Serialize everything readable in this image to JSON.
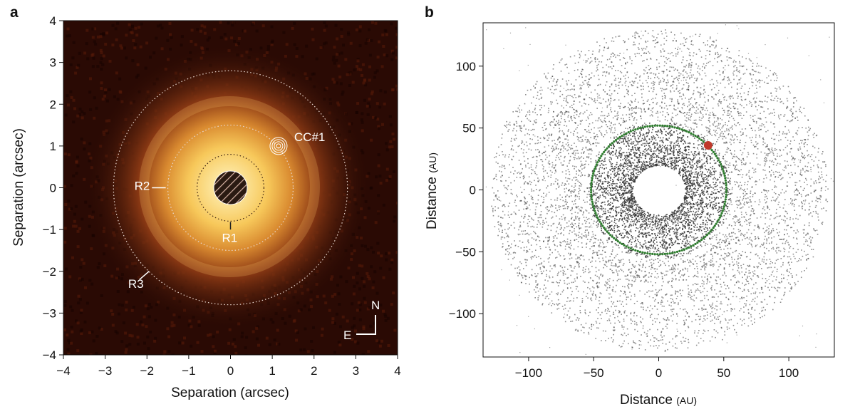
{
  "panel_a": {
    "letter": "a",
    "annotations": {
      "cc1": "CC#1",
      "r1": "R1",
      "r2": "R2",
      "r3": "R3",
      "north": "N",
      "east": "E"
    }
  },
  "panel_b": {
    "letter": "b"
  },
  "colors": {
    "image_bg": "#2a0a04",
    "glow_core": "#fff2b0",
    "glow_mid": "#e7a03a",
    "glow_outer": "#8a3a12",
    "particles": "#555555",
    "resonant_ring": "#2f7d2f",
    "planet": "#c0392b"
  },
  "chart_data": [
    {
      "type": "heatmap",
      "title": "",
      "xlabel": "Separation (arcsec)",
      "ylabel": "Separation (arcsec)",
      "xlim": [
        -4,
        4
      ],
      "ylim": [
        -4,
        4
      ],
      "x_ticks": [
        "−4",
        "−3",
        "−2",
        "−1",
        "0",
        "1",
        "2",
        "3",
        "4"
      ],
      "y_ticks": [
        "4",
        "3",
        "2",
        "1",
        "0",
        "−1",
        "−2",
        "−3",
        "−4"
      ],
      "features": {
        "R1": {
          "radius_arcsec": 0.8
        },
        "R2": {
          "radius_arcsec": 1.5
        },
        "R3": {
          "radius_arcsec": 2.8
        },
        "CC1": {
          "x": 1.15,
          "y": 1.0
        },
        "mask": {
          "radius_arcsec": 0.4
        }
      }
    },
    {
      "type": "scatter",
      "title": "",
      "xlabel": "Distance",
      "xlabel_unit": "(AU)",
      "ylabel": "Distance",
      "ylabel_unit": "(AU)",
      "xlim": [
        -135,
        135
      ],
      "ylim": [
        -135,
        135
      ],
      "x_ticks": [
        "−100",
        "−50",
        "0",
        "50",
        "100"
      ],
      "y_ticks": [
        "100",
        "50",
        "0",
        "−50",
        "−100"
      ],
      "disk": {
        "inner_radius_au": 20,
        "outer_radius_au": 130
      },
      "resonant_ring": {
        "radius_au": 52
      },
      "planet": {
        "x": 38,
        "y": 36
      }
    }
  ]
}
